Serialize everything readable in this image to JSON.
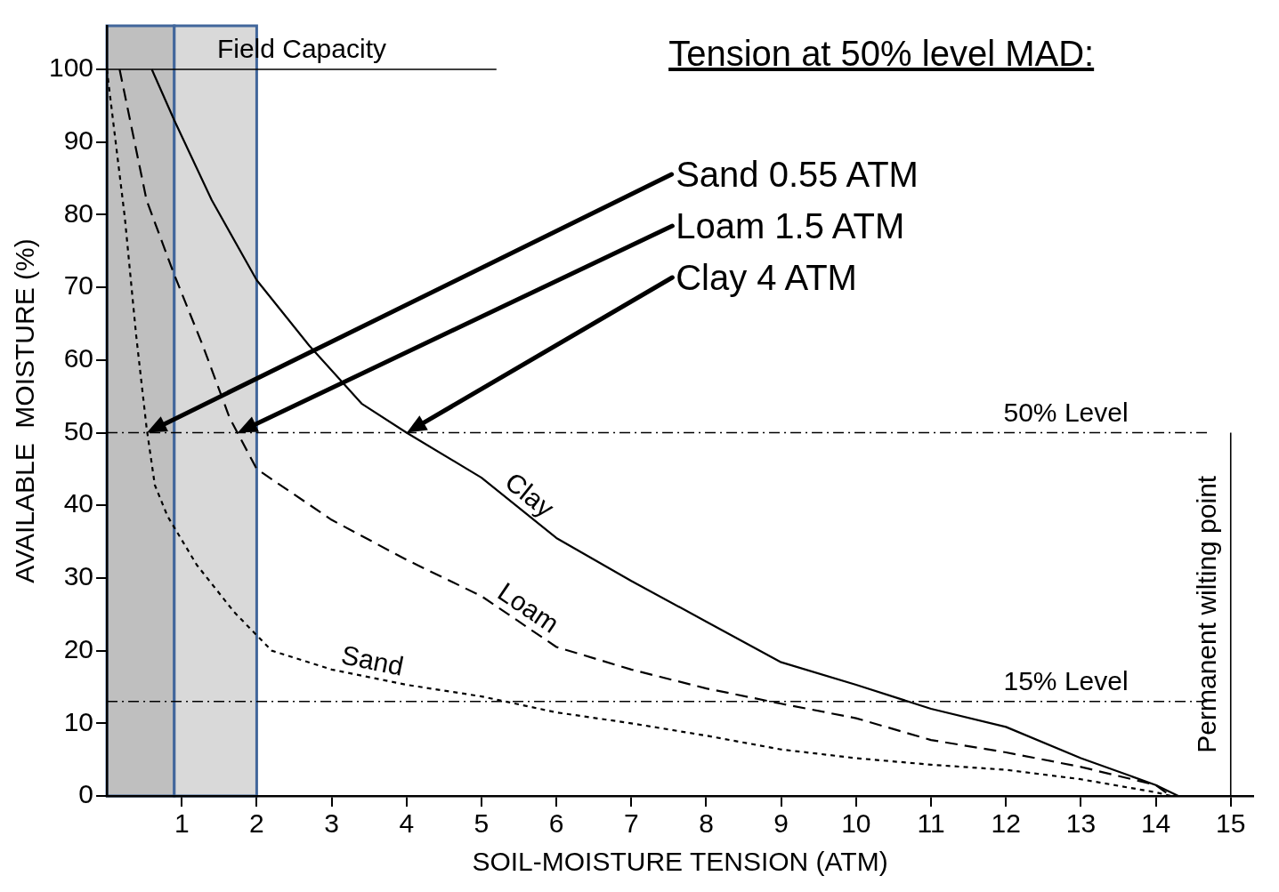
{
  "chart_data": {
    "type": "line",
    "title": "Tension at 50% level MAD:",
    "xlabel": "SOIL-MOISTURE TENSION (ATM)",
    "ylabel": "AVAILABLE  MOISTURE (%)",
    "xlim": [
      0,
      15.3
    ],
    "xticks": [
      1,
      2,
      3,
      4,
      5,
      6,
      7,
      8,
      9,
      10,
      11,
      12,
      13,
      14,
      15
    ],
    "ylim": [
      0,
      106
    ],
    "yticks": [
      0,
      10,
      20,
      30,
      40,
      50,
      60,
      70,
      80,
      90,
      100
    ],
    "grid": false,
    "legend": false,
    "marker": "none",
    "series": [
      {
        "name": "Clay",
        "color": "#000000",
        "line_style": "solid",
        "x": [
          0.6,
          0.9,
          1.4,
          2,
          2.7,
          3.4,
          4,
          5,
          6,
          7,
          8,
          9,
          10,
          11,
          12,
          13,
          14,
          14.3
        ],
        "values": [
          100,
          93,
          82,
          71,
          62,
          54,
          50,
          43.8,
          35.5,
          29.6,
          24,
          18.4,
          15.3,
          12,
          9.5,
          5.2,
          1.5,
          0
        ]
      },
      {
        "name": "Loam",
        "color": "#000000",
        "line_style": "dashed",
        "x": [
          0.17,
          0.53,
          0.89,
          1.28,
          1.64,
          2,
          3,
          4,
          5,
          6,
          7,
          8,
          9,
          10,
          11,
          12,
          13,
          14,
          14.2
        ],
        "values": [
          100,
          82,
          72,
          62,
          52,
          45,
          38,
          32.5,
          27.5,
          20.5,
          17.4,
          14.8,
          12.7,
          10.7,
          7.7,
          6,
          4,
          1.5,
          0
        ]
      },
      {
        "name": "Sand",
        "color": "#000000",
        "line_style": "dotted",
        "x": [
          0,
          0.24,
          0.39,
          0.53,
          0.64,
          0.81,
          1.2,
          1.7,
          2.2,
          3,
          4,
          5,
          6,
          7,
          8,
          9,
          10,
          11,
          12,
          13,
          14,
          14.2
        ],
        "values": [
          100,
          79.6,
          63.5,
          50.7,
          42.8,
          38.5,
          31.8,
          25.3,
          20,
          17.4,
          15.3,
          13.7,
          11.5,
          10,
          8.3,
          6.4,
          5.2,
          4.3,
          3.6,
          2.3,
          0.5,
          0
        ]
      }
    ],
    "bands": [
      {
        "axis": "x",
        "from": 0,
        "to": 0.9,
        "color": "#bfbfbf"
      },
      {
        "axis": "x",
        "from": 0.9,
        "to": 2,
        "color": "#d9d9d9"
      }
    ],
    "ref_lines": [
      {
        "axis": "y",
        "value": 100,
        "label": "Field Capacity",
        "line_style": "solid"
      },
      {
        "axis": "y",
        "value": 50,
        "label": "50% Level",
        "line_style": "dashed"
      },
      {
        "axis": "y",
        "value": 13,
        "label": "15% Level",
        "line_style": "dashed"
      },
      {
        "axis": "x",
        "value": 15,
        "label": "Permanent wilting point",
        "line_style": "solid"
      }
    ],
    "annotations": [
      "Sand 0.55 ATM",
      "Loam 1.5 ATM",
      "Clay 4 ATM"
    ]
  }
}
